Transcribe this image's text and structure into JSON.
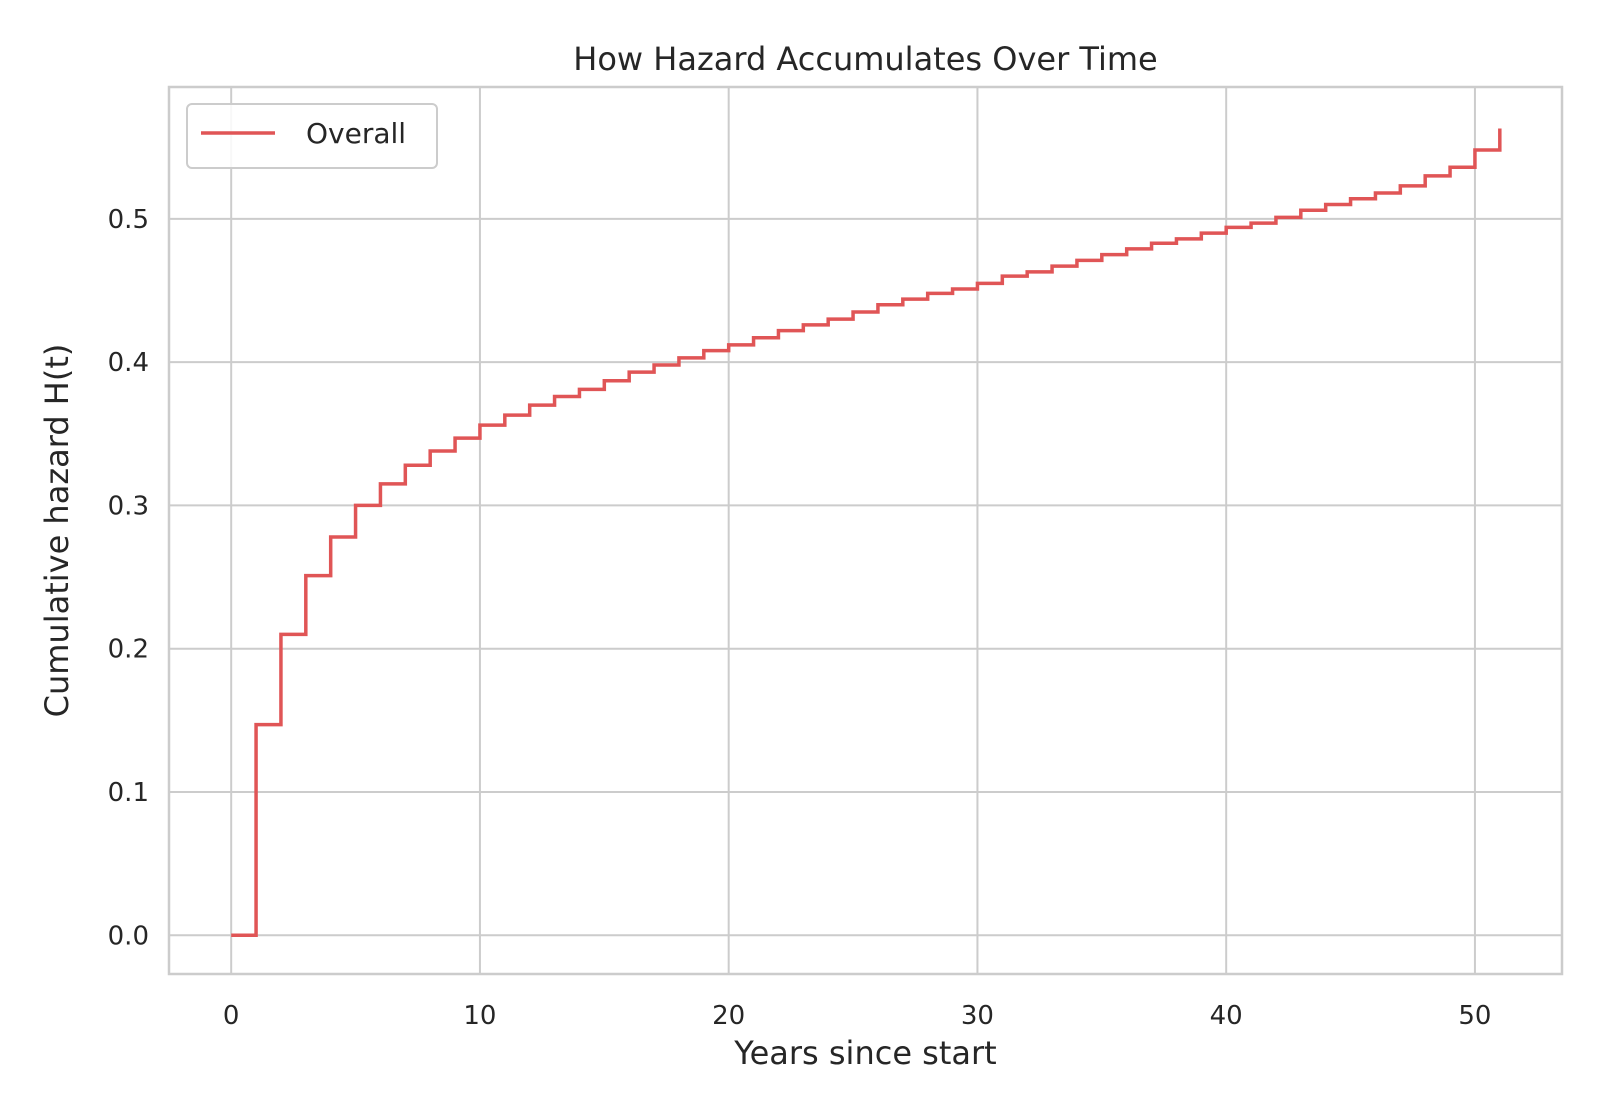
{
  "chart_data": {
    "type": "line",
    "step": "post",
    "title": "How Hazard Accumulates Over Time",
    "xlabel": "Years since start",
    "ylabel": "Cumulative hazard H(t)",
    "xlim": [
      -2.5,
      53.5
    ],
    "ylim": [
      -0.027,
      0.592
    ],
    "xticks": [
      0,
      10,
      20,
      30,
      40,
      50
    ],
    "yticks": [
      0.0,
      0.1,
      0.2,
      0.3,
      0.4,
      0.5
    ],
    "xtick_labels": [
      "0",
      "10",
      "20",
      "30",
      "40",
      "50"
    ],
    "ytick_labels": [
      "0.0",
      "0.1",
      "0.2",
      "0.3",
      "0.4",
      "0.5"
    ],
    "grid": true,
    "legend": "upper-left",
    "series": [
      {
        "name": "Overall",
        "color": "#e05556",
        "x": [
          0,
          1,
          2,
          3,
          4,
          5,
          6,
          7,
          8,
          9,
          10,
          11,
          12,
          13,
          14,
          15,
          16,
          17,
          18,
          19,
          20,
          21,
          22,
          23,
          24,
          25,
          26,
          27,
          28,
          29,
          30,
          31,
          32,
          33,
          34,
          35,
          36,
          37,
          38,
          39,
          40,
          41,
          42,
          43,
          44,
          45,
          46,
          47,
          48,
          49,
          50,
          51
        ],
        "y": [
          0.0,
          0.147,
          0.21,
          0.251,
          0.278,
          0.3,
          0.315,
          0.328,
          0.338,
          0.347,
          0.356,
          0.363,
          0.37,
          0.376,
          0.381,
          0.387,
          0.393,
          0.398,
          0.403,
          0.408,
          0.412,
          0.417,
          0.422,
          0.426,
          0.43,
          0.435,
          0.44,
          0.444,
          0.448,
          0.451,
          0.455,
          0.46,
          0.463,
          0.467,
          0.471,
          0.475,
          0.479,
          0.483,
          0.486,
          0.49,
          0.494,
          0.497,
          0.501,
          0.506,
          0.51,
          0.514,
          0.518,
          0.523,
          0.53,
          0.536,
          0.548,
          0.563
        ]
      }
    ]
  }
}
